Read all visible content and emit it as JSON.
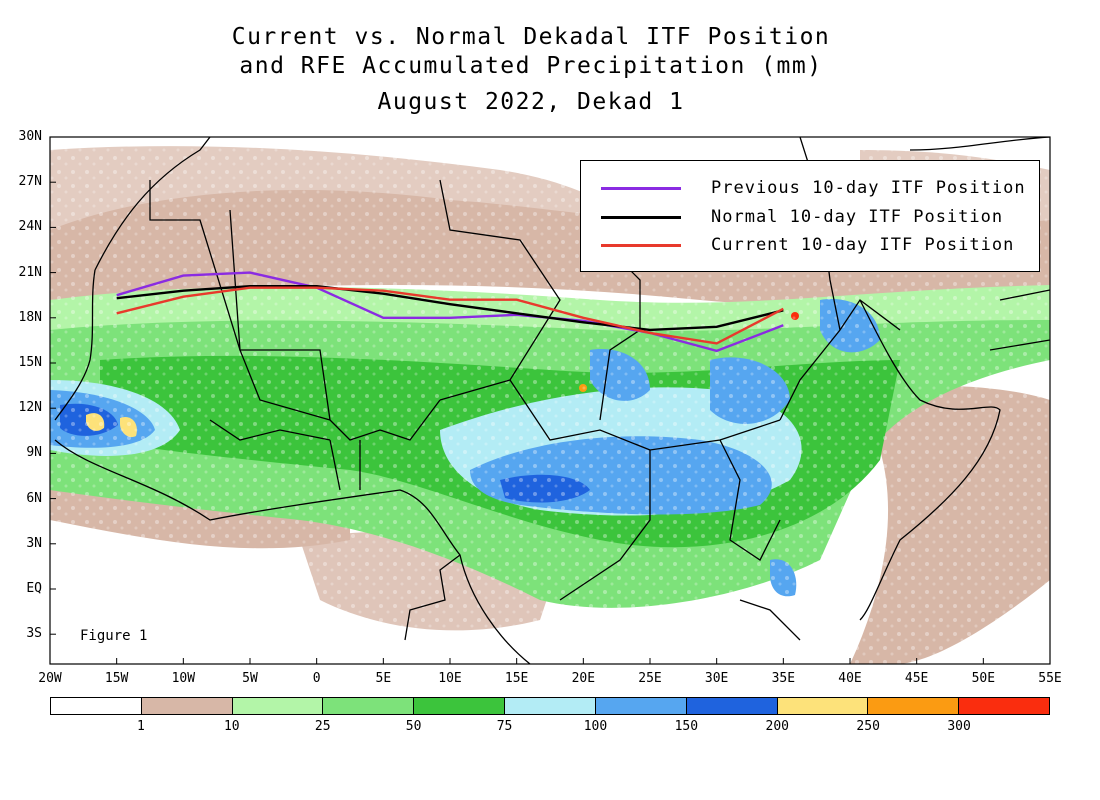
{
  "title": {
    "line1": "Current vs. Normal Dekadal ITF Position",
    "line2": "and RFE Accumulated Precipitation (mm)",
    "line3": "August 2022, Dekad 1"
  },
  "figure_label": "Figure 1",
  "legend": [
    {
      "label": "Previous 10-day ITF Position",
      "color": "#8a2be2",
      "icon": "purple-line"
    },
    {
      "label": "Normal 10-day ITF Position",
      "color": "#000000",
      "icon": "black-line"
    },
    {
      "label": "Current 10-day ITF Position",
      "color": "#e8392c",
      "icon": "red-line"
    }
  ],
  "lat_labels": [
    "30N",
    "27N",
    "24N",
    "21N",
    "18N",
    "15N",
    "12N",
    "9N",
    "6N",
    "3N",
    "EQ",
    "3S"
  ],
  "lon_labels": [
    "20W",
    "15W",
    "10W",
    "5W",
    "0",
    "5E",
    "10E",
    "15E",
    "20E",
    "25E",
    "30E",
    "35E",
    "40E",
    "45E",
    "50E",
    "55E"
  ],
  "colorbar": {
    "colors": [
      "#ffffff",
      "#d7b7a7",
      "#b3f5a8",
      "#7de27a",
      "#3cc43c",
      "#b3ecf5",
      "#56a6f0",
      "#1f63de",
      "#fde27a",
      "#fb9b12",
      "#fa2d0e"
    ],
    "labels": [
      "1",
      "10",
      "25",
      "50",
      "75",
      "100",
      "150",
      "200",
      "250",
      "300"
    ]
  },
  "chart_data": {
    "type": "line",
    "title": "Current vs. Normal Dekadal ITF Position and RFE Accumulated Precipitation (mm)",
    "subtitle": "August 2022, Dekad 1",
    "xlabel": "",
    "ylabel": "",
    "xlim": [
      -20,
      55
    ],
    "ylim": [
      -5,
      30
    ],
    "series": [
      {
        "name": "Previous 10-day ITF Position",
        "color": "#8a2be2",
        "x": [
          -15,
          -10,
          -5,
          0,
          5,
          10,
          15,
          20,
          25,
          30,
          35
        ],
        "y": [
          19.5,
          20.8,
          21.0,
          20.0,
          18.0,
          18.0,
          18.2,
          17.8,
          17.0,
          15.8,
          17.5
        ]
      },
      {
        "name": "Normal 10-day ITF Position",
        "color": "#000000",
        "x": [
          -15,
          -10,
          -5,
          0,
          5,
          10,
          15,
          20,
          25,
          30,
          35
        ],
        "y": [
          19.3,
          19.8,
          20.1,
          20.1,
          19.6,
          18.9,
          18.3,
          17.7,
          17.2,
          17.4,
          18.5
        ]
      },
      {
        "name": "Current 10-day ITF Position",
        "color": "#e8392c",
        "x": [
          -15,
          -10,
          -5,
          0,
          5,
          10,
          15,
          20,
          25,
          30,
          35
        ],
        "y": [
          18.3,
          19.4,
          20.0,
          20.0,
          19.8,
          19.2,
          19.2,
          18.0,
          17.0,
          16.3,
          18.6
        ]
      }
    ],
    "colorbar_bins_mm": [
      1,
      10,
      25,
      50,
      75,
      100,
      150,
      200,
      250,
      300
    ]
  }
}
